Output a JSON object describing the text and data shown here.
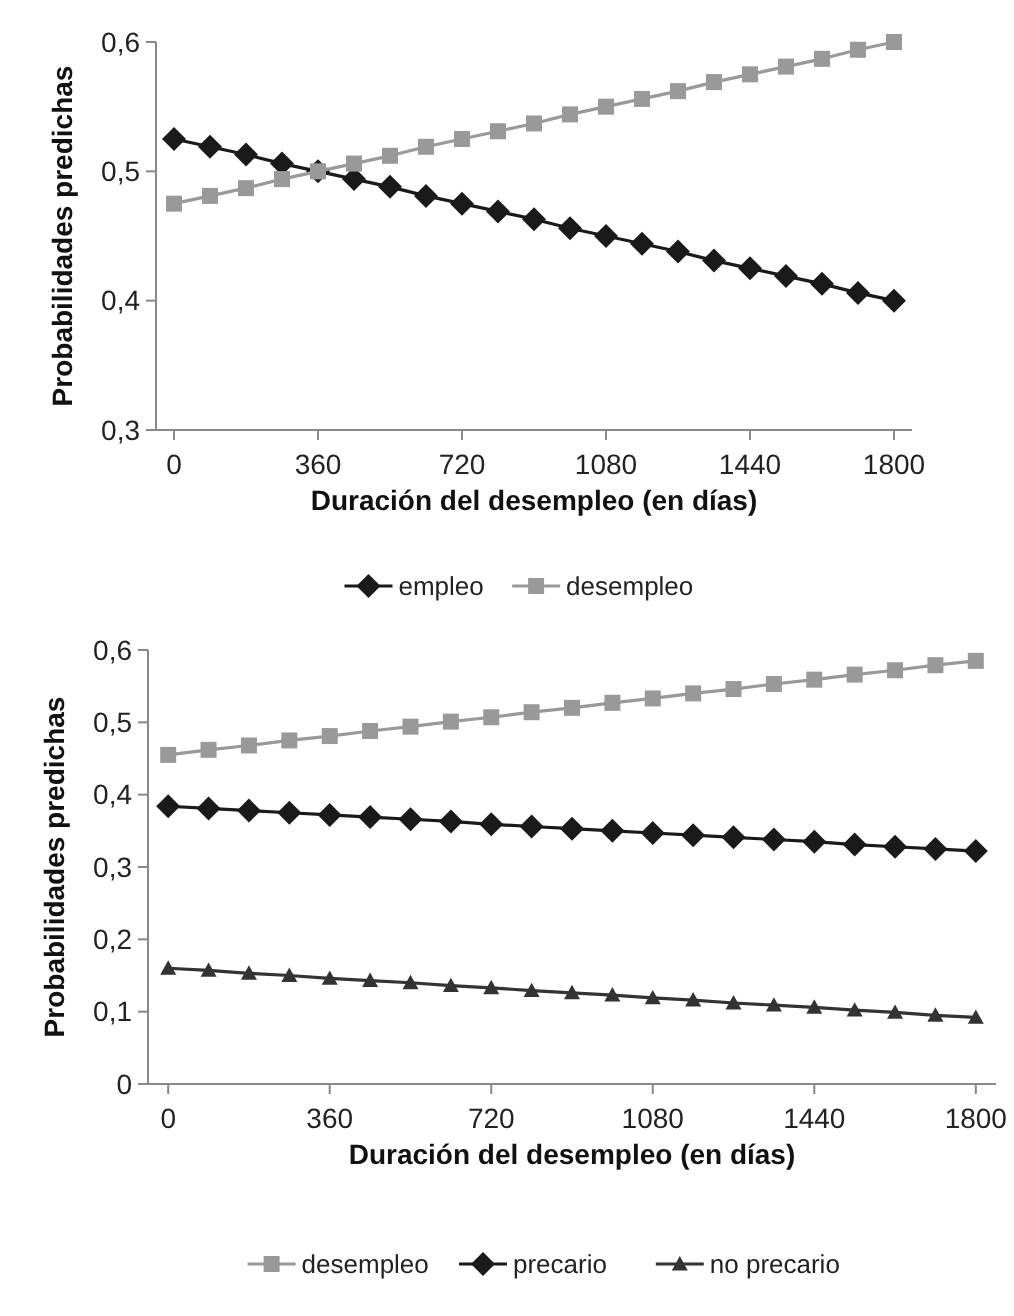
{
  "chart_data": [
    {
      "type": "line",
      "xlabel": "Duración del desempleo (en días)",
      "ylabel": "Probabilidades predichas",
      "x": [
        0,
        90,
        180,
        270,
        360,
        450,
        540,
        630,
        720,
        810,
        900,
        990,
        1080,
        1170,
        1260,
        1350,
        1440,
        1530,
        1620,
        1710,
        1800
      ],
      "xlim": [
        -45,
        1845
      ],
      "xticks": [
        0,
        360,
        720,
        1080,
        1440,
        1800
      ],
      "ylim": [
        0.3,
        0.6
      ],
      "yticks": [
        {
          "value": 0.3,
          "label": "0,3"
        },
        {
          "value": 0.4,
          "label": "0,4"
        },
        {
          "value": 0.5,
          "label": "0,5"
        },
        {
          "value": 0.6,
          "label": "0,6"
        }
      ],
      "legend": "bottom",
      "grid": false,
      "series": [
        {
          "name": "empleo",
          "color": "#1a1a1a",
          "marker": "diamond",
          "values": [
            0.525,
            0.519,
            0.513,
            0.506,
            0.5,
            0.494,
            0.488,
            0.481,
            0.475,
            0.469,
            0.463,
            0.456,
            0.45,
            0.444,
            0.438,
            0.431,
            0.425,
            0.419,
            0.413,
            0.406,
            0.4
          ]
        },
        {
          "name": "desempleo",
          "color": "#999999",
          "marker": "square",
          "values": [
            0.475,
            0.481,
            0.487,
            0.494,
            0.5,
            0.506,
            0.512,
            0.519,
            0.525,
            0.531,
            0.537,
            0.544,
            0.55,
            0.556,
            0.562,
            0.569,
            0.575,
            0.581,
            0.587,
            0.594,
            0.6
          ]
        }
      ]
    },
    {
      "type": "line",
      "xlabel": "Duración del desempleo (en días)",
      "ylabel": "Probabilidades predichas",
      "x": [
        0,
        90,
        180,
        270,
        360,
        450,
        540,
        630,
        720,
        810,
        900,
        990,
        1080,
        1170,
        1260,
        1350,
        1440,
        1530,
        1620,
        1710,
        1800
      ],
      "xlim": [
        -45,
        1845
      ],
      "xticks": [
        0,
        360,
        720,
        1080,
        1440,
        1800
      ],
      "ylim": [
        0,
        0.6
      ],
      "yticks": [
        0,
        {
          "value": 0.1,
          "label": "0,1"
        },
        {
          "value": 0.2,
          "label": "0,2"
        },
        {
          "value": 0.3,
          "label": "0,3"
        },
        {
          "value": 0.4,
          "label": "0,4"
        },
        {
          "value": 0.5,
          "label": "0,5"
        },
        {
          "value": 0.6,
          "label": "0,6"
        }
      ],
      "legend": "bottom",
      "grid": false,
      "series": [
        {
          "name": "desempleo",
          "color": "#999999",
          "marker": "square",
          "values": [
            0.455,
            0.462,
            0.468,
            0.475,
            0.481,
            0.488,
            0.494,
            0.501,
            0.507,
            0.514,
            0.52,
            0.527,
            0.533,
            0.54,
            0.546,
            0.553,
            0.559,
            0.566,
            0.572,
            0.579,
            0.585
          ]
        },
        {
          "name": "precario",
          "color": "#1a1a1a",
          "marker": "diamond",
          "values": [
            0.384,
            0.381,
            0.378,
            0.375,
            0.372,
            0.369,
            0.366,
            0.363,
            0.359,
            0.356,
            0.353,
            0.35,
            0.347,
            0.344,
            0.341,
            0.338,
            0.335,
            0.331,
            0.328,
            0.325,
            0.322
          ]
        },
        {
          "name": "no precario",
          "color": "#333333",
          "marker": "triangle",
          "values": [
            0.16,
            0.157,
            0.153,
            0.15,
            0.146,
            0.143,
            0.14,
            0.136,
            0.133,
            0.129,
            0.126,
            0.123,
            0.119,
            0.116,
            0.112,
            0.109,
            0.106,
            0.102,
            0.099,
            0.095,
            0.092
          ]
        }
      ]
    }
  ]
}
